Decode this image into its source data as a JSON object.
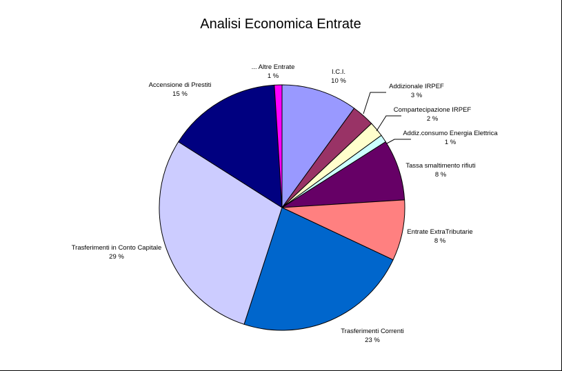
{
  "chart_data": {
    "type": "pie",
    "title": "Analisi Economica Entrate",
    "start_angle_deg": 0,
    "direction": "clockwise",
    "slices": [
      {
        "name": "I.C.I.",
        "value": 10,
        "label": "10 %",
        "color": "#9999FF"
      },
      {
        "name": "Addizionale IRPEF",
        "value": 3,
        "label": "3 %",
        "color": "#993366"
      },
      {
        "name": "Compartecipazione IRPEF",
        "value": 2,
        "label": "2 %",
        "color": "#FFFFCC"
      },
      {
        "name": "Addiz.consumo Energia Elettrica",
        "value": 1,
        "label": "1 %",
        "color": "#CCFFFF"
      },
      {
        "name": "Tassa smaltimento rifiuti",
        "value": 8,
        "label": "8 %",
        "color": "#660066"
      },
      {
        "name": "Entrate ExtraTributarie",
        "value": 8,
        "label": "8 %",
        "color": "#FF8080"
      },
      {
        "name": "Trasferimenti Correnti",
        "value": 23,
        "label": "23 %",
        "color": "#0066CC"
      },
      {
        "name": "Trasferimenti in Conto Capitale",
        "value": 29,
        "label": "29 %",
        "color": "#CCCCFF"
      },
      {
        "name": "Accensione di Prestiti",
        "value": 15,
        "label": "15 %",
        "color": "#000080"
      },
      {
        "name": "... Altre Entrate",
        "value": 1,
        "label": "1 %",
        "color": "#FF00FF"
      }
    ]
  }
}
